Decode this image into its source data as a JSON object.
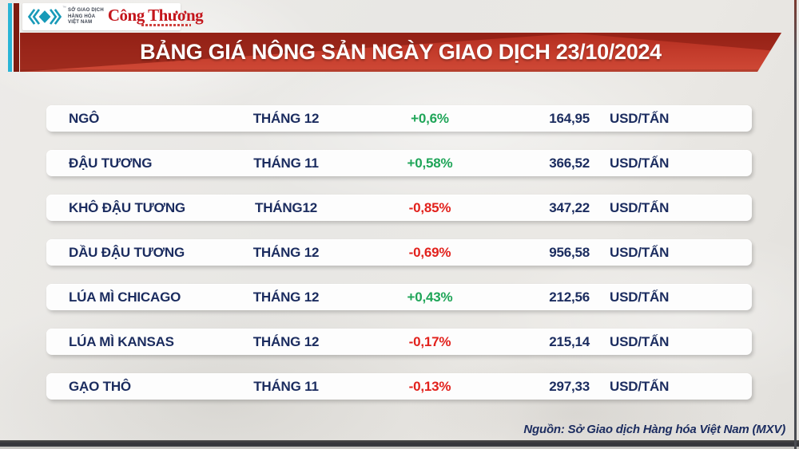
{
  "header": {
    "logo": {
      "exchange_lines": [
        "SỞ GIAO DỊCH",
        "HÀNG HÓA",
        "VIỆT NAM"
      ],
      "trademark": "™",
      "brand": "Công Thương"
    },
    "banner_title": "BẢNG GIÁ NÔNG SẢN NGÀY GIAO DỊCH 23/10/2024"
  },
  "chart_data": {
    "type": "table",
    "title": "BẢNG GIÁ NÔNG SẢN NGÀY GIAO DỊCH 23/10/2024",
    "rows": [
      {
        "commodity": "NGÔ",
        "month": "THÁNG 12",
        "change": "+0,6%",
        "price": "164,95",
        "unit": "USD/TẤN"
      },
      {
        "commodity": "ĐẬU TƯƠNG",
        "month": "THÁNG 11",
        "change": "+0,58%",
        "price": "366,52",
        "unit": "USD/TẤN"
      },
      {
        "commodity": "KHÔ ĐẬU TƯƠNG",
        "month": "THÁNG12",
        "change": "-0,85%",
        "price": "347,22",
        "unit": "USD/TẤN"
      },
      {
        "commodity": "DẦU ĐẬU TƯƠNG",
        "month": "THÁNG 12",
        "change": "-0,69%",
        "price": "956,58",
        "unit": "USD/TẤN"
      },
      {
        "commodity": "LÚA MÌ CHICAGO",
        "month": "THÁNG 12",
        "change": "+0,43%",
        "price": "212,56",
        "unit": "USD/TẤN"
      },
      {
        "commodity": "LÚA MÌ KANSAS",
        "month": "THÁNG 12",
        "change": "-0,17%",
        "price": "215,14",
        "unit": "USD/TẤN"
      },
      {
        "commodity": "GẠO THÔ",
        "month": "THÁNG 11",
        "change": "-0,13%",
        "price": "297,33",
        "unit": "USD/TẤN"
      }
    ]
  },
  "footer": {
    "source": "Nguồn: Sở Giao dịch Hàng hóa Việt Nam (MXV)"
  },
  "colors": {
    "banner_red": "#c23a2a",
    "banner_dark_red": "#811a10",
    "positive_green": "#1fa558",
    "negative_red": "#e2211c",
    "navy_text": "#1b2c5f",
    "cyan_bar": "#2ab5d6",
    "maroon_bar": "#7d1b10",
    "brand_red": "#c4161c",
    "mxv_teal": "#189ab8",
    "bottom_bar": "#333439"
  }
}
